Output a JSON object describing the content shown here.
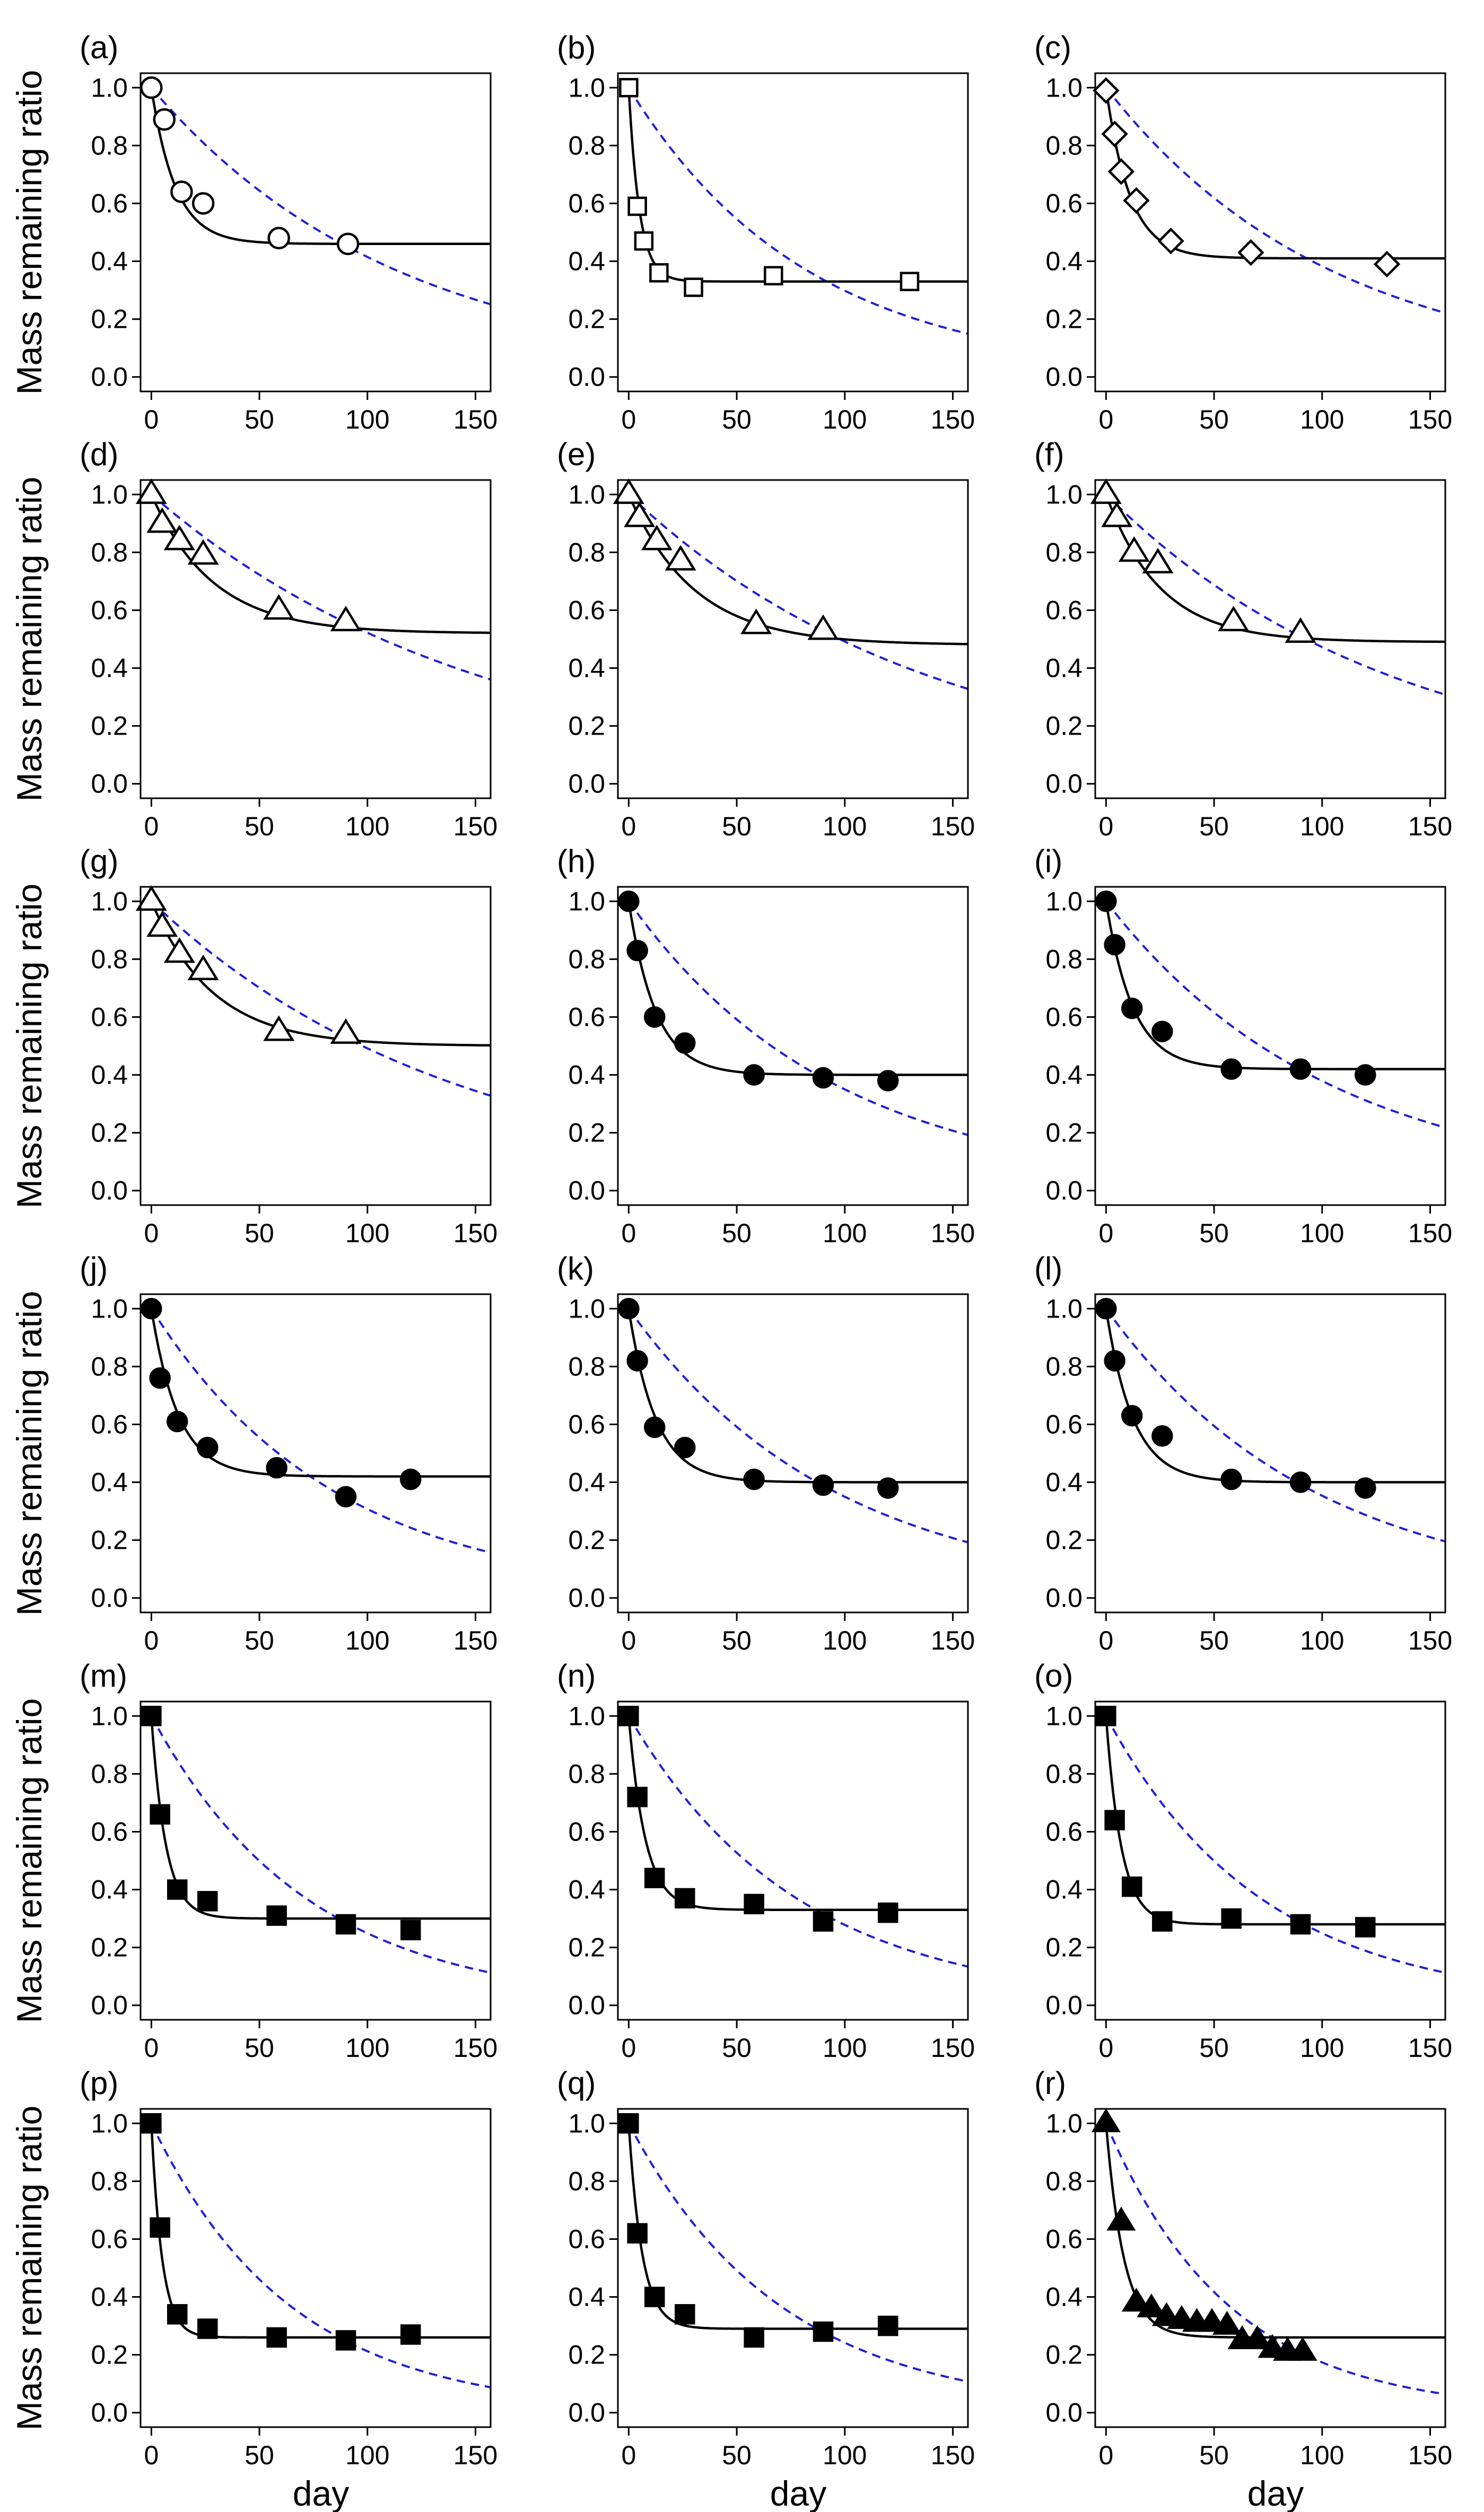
{
  "figure": {
    "ylabel": "Mass remaining ratio",
    "xlabel": "day",
    "xticks": [
      0,
      50,
      100,
      150
    ],
    "yticks": [
      0.0,
      0.2,
      0.4,
      0.6,
      0.8,
      1.0
    ],
    "ytick_labels": [
      "0.0",
      "0.2",
      "0.4",
      "0.6",
      "0.8",
      "1.0"
    ],
    "xlim": [
      -5,
      157
    ],
    "ylim": [
      -0.05,
      1.05
    ],
    "colors": {
      "observed_fit": "#000000",
      "single_exponential": "#1f1fd6"
    }
  },
  "chart_data": [
    {
      "type": "scatter",
      "label": "(a)",
      "marker": "circle-open",
      "x": [
        0,
        6,
        14,
        24,
        59,
        91
      ],
      "y": [
        1.0,
        0.89,
        0.64,
        0.6,
        0.48,
        0.46
      ],
      "fit_solid": {
        "asymptote": 0.46,
        "rate": 0.09
      },
      "fit_dashed": {
        "rate": 0.0088
      }
    },
    {
      "type": "scatter",
      "label": "(b)",
      "marker": "square-open",
      "x": [
        0,
        4,
        7,
        14,
        30,
        67,
        130
      ],
      "y": [
        1.0,
        0.59,
        0.47,
        0.36,
        0.31,
        0.35,
        0.33
      ],
      "fit_solid": {
        "asymptote": 0.33,
        "rate": 0.2
      },
      "fit_dashed": {
        "rate": 0.0121
      }
    },
    {
      "type": "scatter",
      "label": "(c)",
      "marker": "diamond-open",
      "x": [
        0,
        4,
        7,
        14,
        30,
        67,
        130
      ],
      "y": [
        0.99,
        0.84,
        0.71,
        0.61,
        0.47,
        0.43,
        0.39
      ],
      "fit_solid": {
        "asymptote": 0.41,
        "rate": 0.09
      },
      "fit_dashed": {
        "rate": 0.0096
      }
    },
    {
      "type": "scatter",
      "label": "(d)",
      "marker": "triangle-open",
      "x": [
        0,
        5,
        13,
        24,
        59,
        90
      ],
      "y": [
        1.0,
        0.9,
        0.84,
        0.79,
        0.6,
        0.56
      ],
      "fit_solid": {
        "asymptote": 0.52,
        "rate": 0.035
      },
      "fit_dashed": {
        "rate": 0.0065
      }
    },
    {
      "type": "scatter",
      "label": "(e)",
      "marker": "triangle-open",
      "x": [
        0,
        5,
        13,
        24,
        59,
        90
      ],
      "y": [
        1.0,
        0.92,
        0.84,
        0.77,
        0.55,
        0.53
      ],
      "fit_solid": {
        "asymptote": 0.48,
        "rate": 0.033
      },
      "fit_dashed": {
        "rate": 0.0071
      }
    },
    {
      "type": "scatter",
      "label": "(f)",
      "marker": "triangle-open",
      "x": [
        0,
        5,
        13,
        24,
        59,
        90
      ],
      "y": [
        1.0,
        0.92,
        0.8,
        0.76,
        0.56,
        0.52
      ],
      "fit_solid": {
        "asymptote": 0.49,
        "rate": 0.04
      },
      "fit_dashed": {
        "rate": 0.0075
      }
    },
    {
      "type": "scatter",
      "label": "(g)",
      "marker": "triangle-open",
      "x": [
        0,
        5,
        13,
        24,
        59,
        90
      ],
      "y": [
        1.0,
        0.91,
        0.82,
        0.76,
        0.55,
        0.54
      ],
      "fit_solid": {
        "asymptote": 0.5,
        "rate": 0.035
      },
      "fit_dashed": {
        "rate": 0.0071
      }
    },
    {
      "type": "scatter",
      "label": "(h)",
      "marker": "circle-filled",
      "x": [
        0,
        4,
        12,
        26,
        58,
        90,
        120
      ],
      "y": [
        1.0,
        0.83,
        0.6,
        0.51,
        0.4,
        0.39,
        0.38
      ],
      "fit_solid": {
        "asymptote": 0.4,
        "rate": 0.08
      },
      "fit_dashed": {
        "rate": 0.0105
      }
    },
    {
      "type": "scatter",
      "label": "(i)",
      "marker": "circle-filled",
      "x": [
        0,
        4,
        12,
        26,
        58,
        90,
        120
      ],
      "y": [
        1.0,
        0.85,
        0.63,
        0.55,
        0.42,
        0.42,
        0.4
      ],
      "fit_solid": {
        "asymptote": 0.42,
        "rate": 0.08
      },
      "fit_dashed": {
        "rate": 0.0097
      }
    },
    {
      "type": "scatter",
      "label": "(j)",
      "marker": "circle-filled",
      "x": [
        0,
        4,
        12,
        26,
        58,
        90,
        120
      ],
      "y": [
        1.0,
        0.76,
        0.61,
        0.52,
        0.45,
        0.35,
        0.41
      ],
      "fit_solid": {
        "asymptote": 0.42,
        "rate": 0.08
      },
      "fit_dashed": {
        "rate": 0.0118
      }
    },
    {
      "type": "scatter",
      "label": "(k)",
      "marker": "circle-filled",
      "x": [
        0,
        4,
        12,
        26,
        58,
        90,
        120
      ],
      "y": [
        1.0,
        0.82,
        0.59,
        0.52,
        0.41,
        0.39,
        0.38
      ],
      "fit_solid": {
        "asymptote": 0.4,
        "rate": 0.08
      },
      "fit_dashed": {
        "rate": 0.0105
      }
    },
    {
      "type": "scatter",
      "label": "(l)",
      "marker": "circle-filled",
      "x": [
        0,
        4,
        12,
        26,
        58,
        90,
        120
      ],
      "y": [
        1.0,
        0.82,
        0.63,
        0.56,
        0.41,
        0.4,
        0.38
      ],
      "fit_solid": {
        "asymptote": 0.4,
        "rate": 0.08
      },
      "fit_dashed": {
        "rate": 0.0104
      }
    },
    {
      "type": "scatter",
      "label": "(m)",
      "marker": "square-filled",
      "x": [
        0,
        4,
        12,
        26,
        58,
        90,
        120
      ],
      "y": [
        1.0,
        0.66,
        0.4,
        0.36,
        0.31,
        0.28,
        0.26
      ],
      "fit_solid": {
        "asymptote": 0.3,
        "rate": 0.15
      },
      "fit_dashed": {
        "rate": 0.0139
      }
    },
    {
      "type": "scatter",
      "label": "(n)",
      "marker": "square-filled",
      "x": [
        0,
        4,
        12,
        26,
        58,
        90,
        120
      ],
      "y": [
        1.0,
        0.72,
        0.44,
        0.37,
        0.35,
        0.29,
        0.32
      ],
      "fit_solid": {
        "asymptote": 0.33,
        "rate": 0.13
      },
      "fit_dashed": {
        "rate": 0.0128
      }
    },
    {
      "type": "scatter",
      "label": "(o)",
      "marker": "square-filled",
      "x": [
        0,
        4,
        12,
        26,
        58,
        90,
        120
      ],
      "y": [
        1.0,
        0.64,
        0.41,
        0.29,
        0.3,
        0.28,
        0.27
      ],
      "fit_solid": {
        "asymptote": 0.28,
        "rate": 0.14
      },
      "fit_dashed": {
        "rate": 0.0139
      }
    },
    {
      "type": "scatter",
      "label": "(p)",
      "marker": "square-filled",
      "x": [
        0,
        4,
        12,
        26,
        58,
        90,
        120
      ],
      "y": [
        1.0,
        0.64,
        0.34,
        0.29,
        0.26,
        0.25,
        0.27
      ],
      "fit_solid": {
        "asymptote": 0.26,
        "rate": 0.2
      },
      "fit_dashed": {
        "rate": 0.0155
      }
    },
    {
      "type": "scatter",
      "label": "(q)",
      "marker": "square-filled",
      "x": [
        0,
        4,
        12,
        26,
        58,
        90,
        120
      ],
      "y": [
        1.0,
        0.62,
        0.4,
        0.34,
        0.26,
        0.28,
        0.3
      ],
      "fit_solid": {
        "asymptote": 0.29,
        "rate": 0.16
      },
      "fit_dashed": {
        "rate": 0.0142
      }
    },
    {
      "type": "scatter",
      "label": "(r)",
      "marker": "triangle-filled",
      "x": [
        0,
        7,
        14,
        21,
        28,
        35,
        42,
        49,
        56,
        63,
        70,
        77,
        84,
        91
      ],
      "y": [
        1.0,
        0.66,
        0.38,
        0.36,
        0.33,
        0.32,
        0.31,
        0.31,
        0.3,
        0.25,
        0.25,
        0.22,
        0.21,
        0.21
      ],
      "fit_solid": {
        "asymptote": 0.26,
        "rate": 0.12
      },
      "fit_dashed": {
        "rate": 0.0175
      }
    }
  ]
}
